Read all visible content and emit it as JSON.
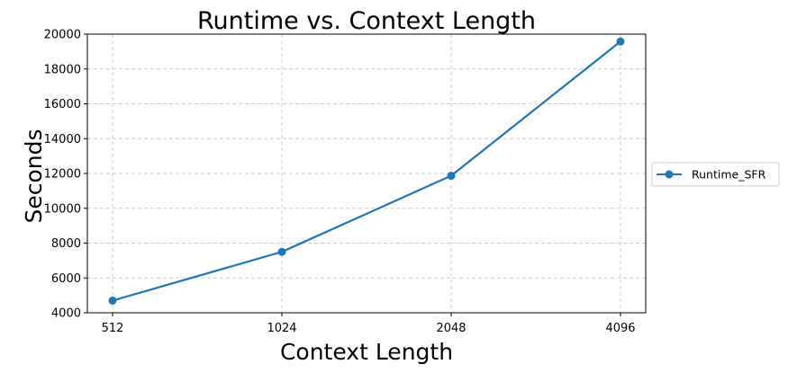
{
  "chart_data": {
    "type": "line",
    "title": "Runtime vs. Context Length",
    "xlabel": "Context Length",
    "ylabel": "Seconds",
    "categories": [
      "512",
      "1024",
      "2048",
      "4096"
    ],
    "series": [
      {
        "name": "Runtime_SFR",
        "values": [
          4700,
          7500,
          11870,
          19580
        ],
        "color": "#1f77b4",
        "marker": "circle"
      }
    ],
    "ylim": [
      4000,
      20000
    ],
    "yticks": [
      "4000",
      "6000",
      "8000",
      "10000",
      "12000",
      "14000",
      "16000",
      "18000",
      "20000"
    ],
    "grid": true,
    "grid_style": "dashed",
    "legend_position": "outside-right"
  }
}
